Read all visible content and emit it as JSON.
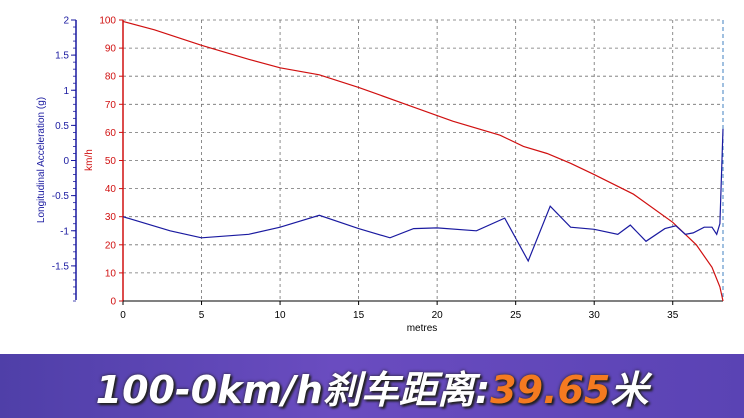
{
  "chart_data": {
    "type": "line",
    "xlabel": "metres",
    "ylabel_left": "Longitudinal Acceleration (g)",
    "ylabel_right": "km/h",
    "xlim": [
      0,
      38.2
    ],
    "ylim_speed": [
      0,
      100
    ],
    "ylim_accel": [
      -2,
      2
    ],
    "x_ticks": [
      0,
      5,
      10,
      15,
      20,
      25,
      30,
      35
    ],
    "speed_ticks": [
      0,
      10,
      20,
      30,
      40,
      50,
      60,
      70,
      80,
      90,
      100
    ],
    "accel_ticks": [
      "2",
      "1.5",
      "1",
      "0.5",
      "0",
      "-0.5",
      "-1",
      "-1.5"
    ],
    "accel_tick_values": [
      2,
      1.5,
      1,
      0.5,
      0,
      -0.5,
      -1,
      -1.5
    ],
    "grid": true,
    "series": [
      {
        "name": "km/h",
        "color": "#d01010",
        "axis": "speed",
        "x": [
          0,
          2,
          5,
          8,
          10,
          12.5,
          15,
          18,
          21,
          24,
          25.5,
          27,
          28.5,
          30,
          32.5,
          35,
          36.5,
          37.5,
          38,
          38.2
        ],
        "y": [
          99.5,
          96.5,
          91,
          86,
          83,
          80.5,
          76,
          70,
          64,
          59,
          55,
          52.5,
          49,
          45,
          38,
          28,
          20,
          12,
          5,
          0
        ]
      },
      {
        "name": "Longitudinal Acceleration (g)",
        "color": "#1a1aa0",
        "axis": "accel",
        "x": [
          0,
          3,
          5,
          8,
          10,
          12.5,
          15,
          17,
          18.5,
          20,
          22.5,
          24.3,
          25.8,
          27.2,
          28.5,
          30,
          31.5,
          32.3,
          33.3,
          34.5,
          35.2,
          35.8,
          36.3,
          37,
          37.5,
          37.8,
          38,
          38.2
        ],
        "y": [
          -0.8,
          -1.0,
          -1.1,
          -1.05,
          -0.95,
          -0.78,
          -0.97,
          -1.1,
          -0.97,
          -0.96,
          -1.0,
          -0.82,
          -1.43,
          -0.65,
          -0.95,
          -0.98,
          -1.05,
          -0.92,
          -1.15,
          -0.97,
          -0.93,
          -1.05,
          -1.03,
          -0.95,
          -0.95,
          -1.05,
          -0.9,
          0.45
        ]
      }
    ]
  },
  "banner": {
    "label": "100-0km/h刹车距离:",
    "value": "39.65",
    "unit": "米"
  }
}
